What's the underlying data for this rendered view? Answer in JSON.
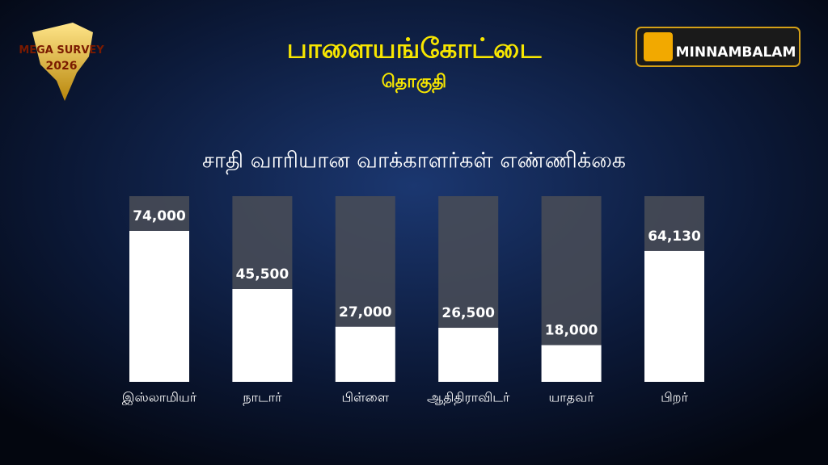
{
  "chart_data": {
    "type": "bar",
    "title": "பாளையங்கோட்டை",
    "subtitle": "தொகுதி",
    "chart_title": "சாதி வாரியான வாக்காளர்கள்  எண்ணிக்கை",
    "categories": [
      "இஸ்லாமியர்",
      "நாடார்",
      "பிள்ளை",
      "ஆதிதிராவிடர்",
      "யாதவர்",
      "பிறர்"
    ],
    "values": [
      74000,
      45500,
      27000,
      26500,
      18000,
      64130
    ],
    "value_labels": [
      "74,000",
      "45,500",
      "27,000",
      "26,500",
      "18,000",
      "64,130"
    ],
    "color": "#ffffff"
  },
  "logos": {
    "survey_line1": "MEGA SURVEY",
    "survey_line2": "2026",
    "brand": "MINNAMBALAM"
  }
}
